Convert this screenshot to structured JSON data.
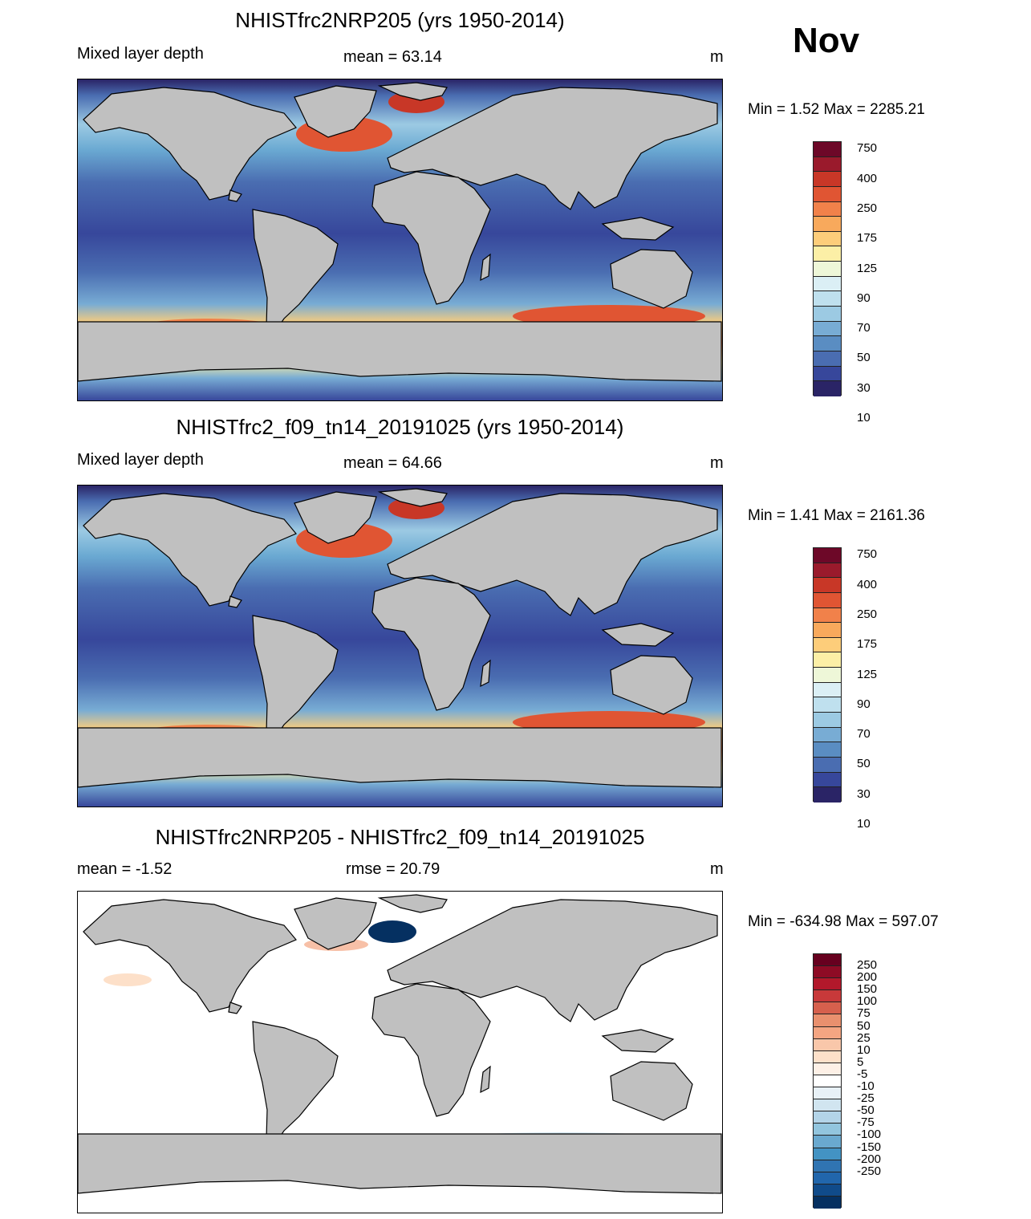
{
  "month": "Nov",
  "land_color": "#c0c0c0",
  "panels": [
    {
      "title": "NHISTfrc2NRP205 (yrs 1950-2014)",
      "left_label": "Mixed layer depth",
      "center_label": "mean =  63.14",
      "units": "m",
      "minmax": "Min =    1.52 Max = 2285.21",
      "field": "mld",
      "colorbar": {
        "colors": [
          "#6d0828",
          "#9a1a2c",
          "#c83727",
          "#e05533",
          "#f1814a",
          "#f8a95c",
          "#fdcd7a",
          "#fcefa6",
          "#eef7d8",
          "#dbeff5",
          "#bfe0ee",
          "#9ccae3",
          "#78acd4",
          "#5a8dc2",
          "#4a6db1",
          "#37479b",
          "#2a2466"
        ],
        "labels": [
          "750",
          "400",
          "250",
          "175",
          "125",
          "90",
          "70",
          "50",
          "30",
          "10"
        ]
      }
    },
    {
      "title": "NHISTfrc2_f09_tn14_20191025 (yrs 1950-2014)",
      "left_label": "Mixed layer depth",
      "center_label": "mean =  64.66",
      "units": "m",
      "minmax": "Min =    1.41 Max = 2161.36",
      "field": "mld",
      "colorbar": {
        "colors": [
          "#6d0828",
          "#9a1a2c",
          "#c83727",
          "#e05533",
          "#f1814a",
          "#f8a95c",
          "#fdcd7a",
          "#fcefa6",
          "#eef7d8",
          "#dbeff5",
          "#bfe0ee",
          "#9ccae3",
          "#78acd4",
          "#5a8dc2",
          "#4a6db1",
          "#37479b",
          "#2a2466"
        ],
        "labels": [
          "750",
          "400",
          "250",
          "175",
          "125",
          "90",
          "70",
          "50",
          "30",
          "10"
        ]
      }
    },
    {
      "title": "NHISTfrc2NRP205 - NHISTfrc2_f09_tn14_20191025",
      "left_label": "mean =  -1.52",
      "center_label": "rmse =  20.79",
      "units": "m",
      "minmax": "Min = -634.98 Max = 597.07",
      "field": "diff",
      "colorbar": {
        "colors": [
          "#67001f",
          "#8e0b25",
          "#b2182b",
          "#c8393a",
          "#d6604d",
          "#e9906e",
          "#f4a582",
          "#f9c7aa",
          "#fde0c9",
          "#fdf0e6",
          "#ffffff",
          "#e8f1f7",
          "#d1e5f0",
          "#b3d4e8",
          "#92c5de",
          "#6aa9cf",
          "#4393c3",
          "#3074b2",
          "#2166ac",
          "#104b8a",
          "#053061"
        ],
        "labels": [
          "250",
          "200",
          "150",
          "100",
          "75",
          "50",
          "25",
          "10",
          "5",
          "-5",
          "-10",
          "-25",
          "-50",
          "-75",
          "-100",
          "-150",
          "-200",
          "-250"
        ]
      }
    }
  ]
}
